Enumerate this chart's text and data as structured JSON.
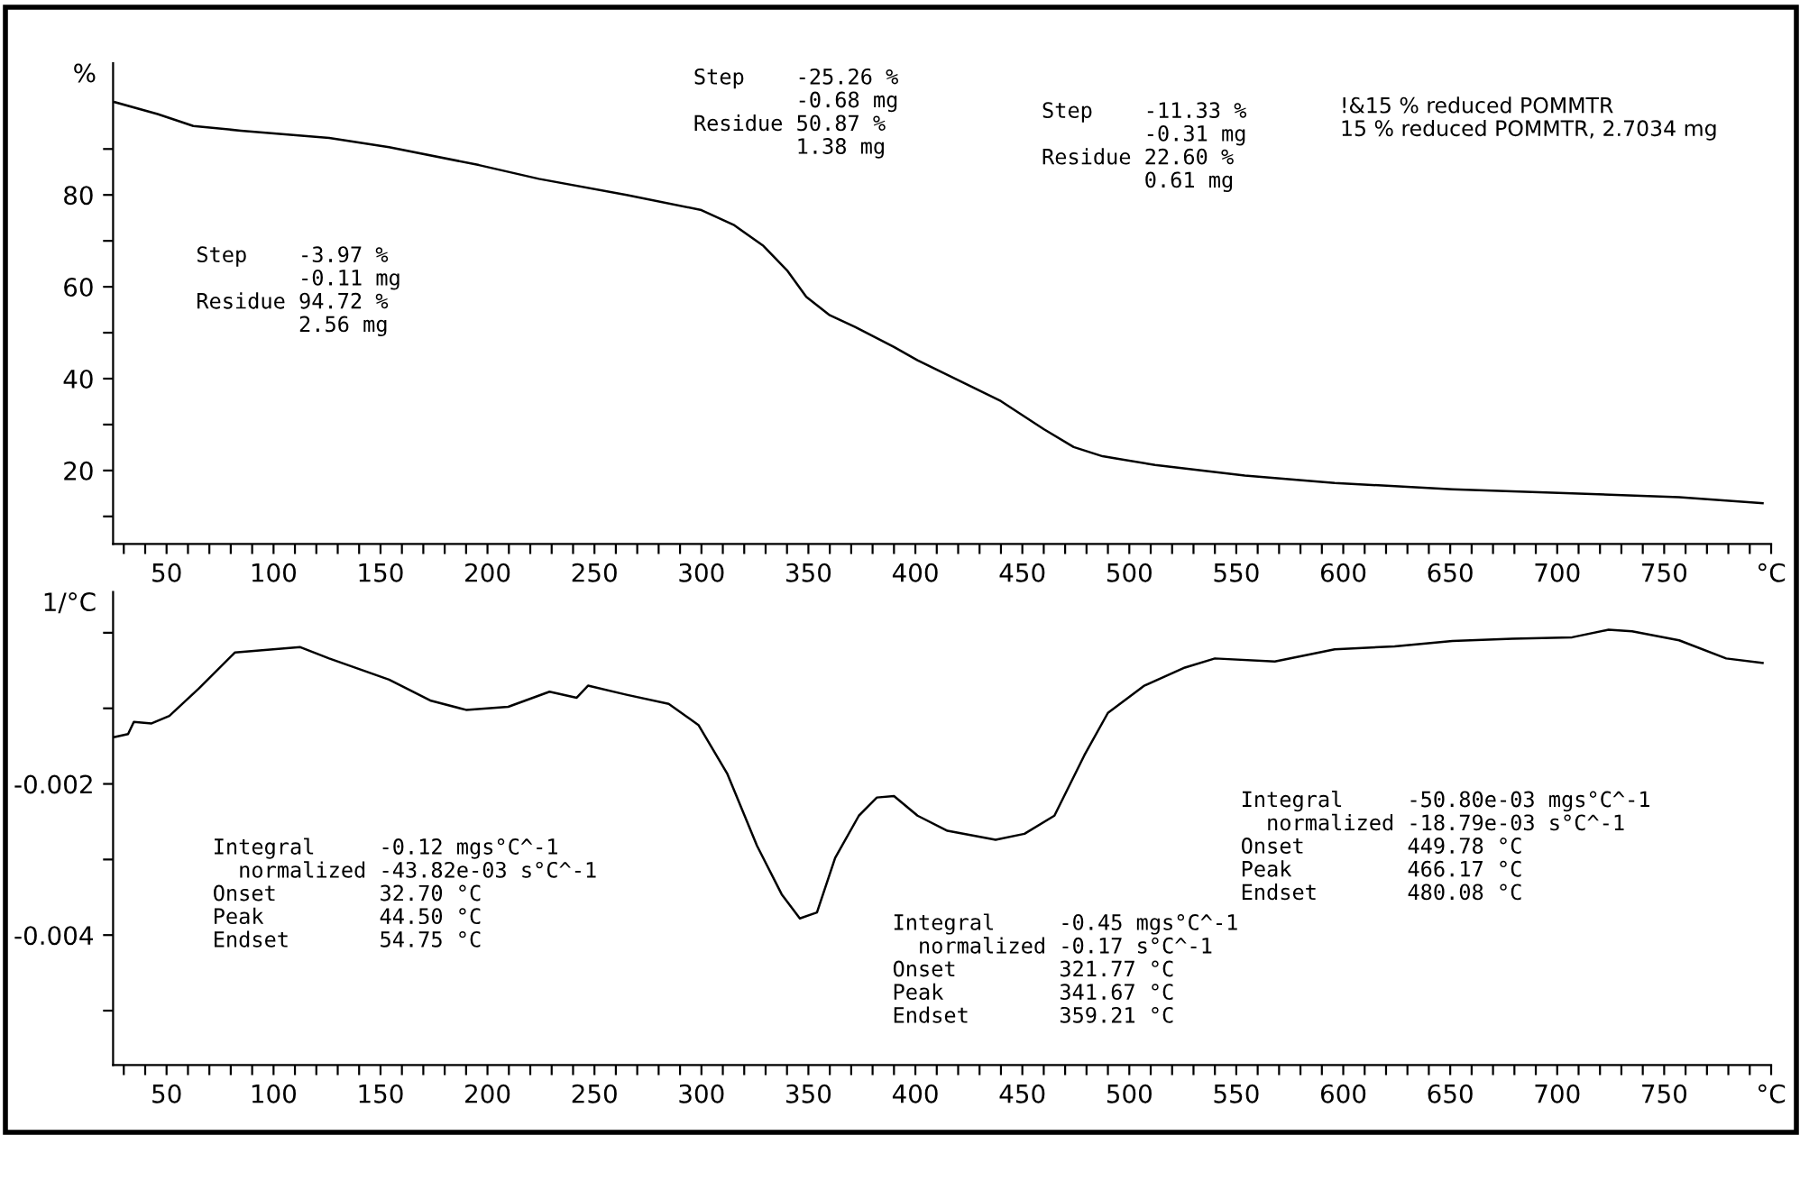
{
  "chart_data": [
    {
      "type": "line",
      "ylabel": "%",
      "xlim": [
        25,
        800
      ],
      "ylim": [
        4,
        108.7
      ],
      "xticks": [
        {
          "value": 30,
          "label": null
        },
        {
          "value": 40,
          "label": null
        },
        50,
        {
          "value": 60,
          "label": null
        },
        {
          "value": 70,
          "label": null
        },
        {
          "value": 80,
          "label": null
        },
        {
          "value": 90,
          "label": null
        },
        100,
        {
          "value": 110,
          "label": null
        },
        {
          "value": 120,
          "label": null
        },
        {
          "value": 130,
          "label": null
        },
        {
          "value": 140,
          "label": null
        },
        150,
        {
          "value": 160,
          "label": null
        },
        {
          "value": 170,
          "label": null
        },
        {
          "value": 180,
          "label": null
        },
        {
          "value": 190,
          "label": null
        },
        200,
        {
          "value": 210,
          "label": null
        },
        {
          "value": 220,
          "label": null
        },
        {
          "value": 230,
          "label": null
        },
        {
          "value": 240,
          "label": null
        },
        250,
        {
          "value": 260,
          "label": null
        },
        {
          "value": 270,
          "label": null
        },
        {
          "value": 280,
          "label": null
        },
        {
          "value": 290,
          "label": null
        },
        300,
        {
          "value": 310,
          "label": null
        },
        {
          "value": 320,
          "label": null
        },
        {
          "value": 330,
          "label": null
        },
        {
          "value": 340,
          "label": null
        },
        350,
        {
          "value": 360,
          "label": null
        },
        {
          "value": 370,
          "label": null
        },
        {
          "value": 380,
          "label": null
        },
        {
          "value": 390,
          "label": null
        },
        400,
        {
          "value": 410,
          "label": null
        },
        {
          "value": 420,
          "label": null
        },
        {
          "value": 430,
          "label": null
        },
        {
          "value": 440,
          "label": null
        },
        450,
        {
          "value": 460,
          "label": null
        },
        {
          "value": 470,
          "label": null
        },
        {
          "value": 480,
          "label": null
        },
        {
          "value": 490,
          "label": null
        },
        500,
        {
          "value": 510,
          "label": null
        },
        {
          "value": 520,
          "label": null
        },
        {
          "value": 530,
          "label": null
        },
        {
          "value": 540,
          "label": null
        },
        550,
        {
          "value": 560,
          "label": null
        },
        {
          "value": 570,
          "label": null
        },
        {
          "value": 580,
          "label": null
        },
        {
          "value": 590,
          "label": null
        },
        600,
        {
          "value": 610,
          "label": null
        },
        {
          "value": 620,
          "label": null
        },
        {
          "value": 630,
          "label": null
        },
        {
          "value": 640,
          "label": null
        },
        650,
        {
          "value": 660,
          "label": null
        },
        {
          "value": 670,
          "label": null
        },
        {
          "value": 680,
          "label": null
        },
        {
          "value": 690,
          "label": null
        },
        700,
        {
          "value": 710,
          "label": null
        },
        {
          "value": 720,
          "label": null
        },
        {
          "value": 730,
          "label": null
        },
        {
          "value": 740,
          "label": null
        },
        750,
        {
          "value": 760,
          "label": null
        },
        {
          "value": 770,
          "label": null
        },
        {
          "value": 780,
          "label": null
        },
        {
          "value": 790,
          "label": null
        },
        {
          "value": 800,
          "label": "°C"
        }
      ],
      "yticks": [
        {
          "value": 10,
          "label": null
        },
        20,
        {
          "value": 30,
          "label": null
        },
        40,
        {
          "value": 50,
          "label": null
        },
        60,
        {
          "value": 70,
          "label": null
        },
        80,
        {
          "value": 90,
          "label": null
        }
      ],
      "grid": false,
      "marker": "none",
      "line_style": "solid",
      "series": [
        {
          "color": "#000000",
          "x": [
            25.8,
            45.8,
            62.5,
            84.7,
            126,
            154,
            196,
            224,
            265,
            300,
            315,
            329,
            340,
            349,
            360,
            372,
            390,
            401,
            440,
            460,
            474,
            487.5,
            512,
            554,
            596,
            651,
            707,
            757,
            796
          ],
          "values": [
            100.2,
            97.6,
            95.0,
            94.0,
            92.4,
            90.4,
            86.5,
            83.5,
            80.0,
            76.7,
            73.5,
            68.9,
            63.6,
            57.8,
            53.8,
            51.2,
            46.9,
            44.0,
            35.1,
            29.0,
            25.1,
            23.1,
            21.2,
            18.9,
            17.3,
            15.9,
            15.0,
            14.2,
            12.9
          ]
        }
      ],
      "annotations": [
        "Step\t-3.97 %\n\t-0.11 mg\nResidue\t94.72 %\n\t2.56 mg",
        "Step\t-25.26 %\n\t-0.68 mg\nResidue\t50.87 %\n\t1.38 mg",
        "Step\t-11.33 %\n\t-0.31 mg\nResidue\t22.60 %\n\t0.61 mg",
        "!&15 % reduced POMMTR\n15 % reduced POMMTR, 2.7034 mg"
      ]
    },
    {
      "type": "line",
      "ylabel": "1/°C",
      "xlim": [
        25,
        800
      ],
      "ylim": [
        -0.00572,
        0.00054
      ],
      "xticks": [
        {
          "value": 30,
          "label": null
        },
        {
          "value": 40,
          "label": null
        },
        50,
        {
          "value": 60,
          "label": null
        },
        {
          "value": 70,
          "label": null
        },
        {
          "value": 80,
          "label": null
        },
        {
          "value": 90,
          "label": null
        },
        100,
        {
          "value": 110,
          "label": null
        },
        {
          "value": 120,
          "label": null
        },
        {
          "value": 130,
          "label": null
        },
        {
          "value": 140,
          "label": null
        },
        150,
        {
          "value": 160,
          "label": null
        },
        {
          "value": 170,
          "label": null
        },
        {
          "value": 180,
          "label": null
        },
        {
          "value": 190,
          "label": null
        },
        200,
        {
          "value": 210,
          "label": null
        },
        {
          "value": 220,
          "label": null
        },
        {
          "value": 230,
          "label": null
        },
        {
          "value": 240,
          "label": null
        },
        250,
        {
          "value": 260,
          "label": null
        },
        {
          "value": 270,
          "label": null
        },
        {
          "value": 280,
          "label": null
        },
        {
          "value": 290,
          "label": null
        },
        300,
        {
          "value": 310,
          "label": null
        },
        {
          "value": 320,
          "label": null
        },
        {
          "value": 330,
          "label": null
        },
        {
          "value": 340,
          "label": null
        },
        350,
        {
          "value": 360,
          "label": null
        },
        {
          "value": 370,
          "label": null
        },
        {
          "value": 380,
          "label": null
        },
        {
          "value": 390,
          "label": null
        },
        400,
        {
          "value": 410,
          "label": null
        },
        {
          "value": 420,
          "label": null
        },
        {
          "value": 430,
          "label": null
        },
        {
          "value": 440,
          "label": null
        },
        450,
        {
          "value": 460,
          "label": null
        },
        {
          "value": 470,
          "label": null
        },
        {
          "value": 480,
          "label": null
        },
        {
          "value": 490,
          "label": null
        },
        500,
        {
          "value": 510,
          "label": null
        },
        {
          "value": 520,
          "label": null
        },
        {
          "value": 530,
          "label": null
        },
        {
          "value": 540,
          "label": null
        },
        550,
        {
          "value": 560,
          "label": null
        },
        {
          "value": 570,
          "label": null
        },
        {
          "value": 580,
          "label": null
        },
        {
          "value": 590,
          "label": null
        },
        600,
        {
          "value": 610,
          "label": null
        },
        {
          "value": 620,
          "label": null
        },
        {
          "value": 630,
          "label": null
        },
        {
          "value": 640,
          "label": null
        },
        650,
        {
          "value": 660,
          "label": null
        },
        {
          "value": 670,
          "label": null
        },
        {
          "value": 680,
          "label": null
        },
        {
          "value": 690,
          "label": null
        },
        700,
        {
          "value": 710,
          "label": null
        },
        {
          "value": 720,
          "label": null
        },
        {
          "value": 730,
          "label": null
        },
        {
          "value": 740,
          "label": null
        },
        750,
        {
          "value": 760,
          "label": null
        },
        {
          "value": 770,
          "label": null
        },
        {
          "value": 780,
          "label": null
        },
        {
          "value": 790,
          "label": null
        },
        {
          "value": 800,
          "label": "°C"
        }
      ],
      "yticks": [
        {
          "value": -0.005,
          "label": null
        },
        -0.004,
        {
          "value": -0.003,
          "label": null
        },
        -0.002,
        {
          "value": -0.001,
          "label": null
        },
        {
          "value": 0,
          "label": null
        }
      ],
      "grid": false,
      "marker": "none",
      "line_style": "solid",
      "series": [
        {
          "color": "#000000",
          "x": [
            25.8,
            32,
            34.7,
            43,
            51.3,
            65,
            82,
            112.5,
            126,
            154,
            173.6,
            190,
            209.7,
            229,
            241.7,
            247,
            265,
            284.7,
            298.6,
            312,
            326,
            337.5,
            346,
            354,
            362.5,
            373.6,
            382,
            390,
            401,
            415,
            437.5,
            451,
            465,
            479,
            490,
            507,
            526,
            540,
            568,
            596,
            624,
            651,
            679,
            707,
            724,
            735,
            757,
            779,
            796
          ],
          "values": [
            -0.00138,
            -0.00134,
            -0.00118,
            -0.0012,
            -0.0011,
            -0.00074,
            -0.00026,
            -0.00019,
            -0.00034,
            -0.00062,
            -0.0009,
            -0.00102,
            -0.00098,
            -0.00078,
            -0.00086,
            -0.0007,
            -0.00082,
            -0.00094,
            -0.00122,
            -0.00186,
            -0.00282,
            -0.00346,
            -0.00378,
            -0.0037,
            -0.00298,
            -0.00242,
            -0.00218,
            -0.00216,
            -0.00242,
            -0.00262,
            -0.00274,
            -0.00266,
            -0.00242,
            -0.00162,
            -0.00106,
            -0.0007,
            -0.00046,
            -0.00034,
            -0.00038,
            -0.00022,
            -0.00018,
            -0.00011,
            -8e-05,
            -6e-05,
            4e-05,
            2e-05,
            -0.0001,
            -0.00034,
            -0.0004
          ]
        }
      ],
      "annotations": [
        "Integral\t-0.12 mgs°C^-1\n  normalized\t-43.82e-03 s°C^-1\nOnset\t32.70 °C\nPeak\t44.50 °C\nEndset\t54.75 °C",
        "Integral\t-0.45 mgs°C^-1\n  normalized\t-0.17 s°C^-1\nOnset\t321.77 °C\nPeak\t341.67 °C\nEndset\t359.21 °C",
        "Integral\t-50.80e-03 mgs°C^-1\n  normalized\t-18.79e-03 s°C^-1\nOnset\t449.78 °C\nPeak\t466.17 °C\nEndset\t480.08 °C"
      ]
    }
  ]
}
